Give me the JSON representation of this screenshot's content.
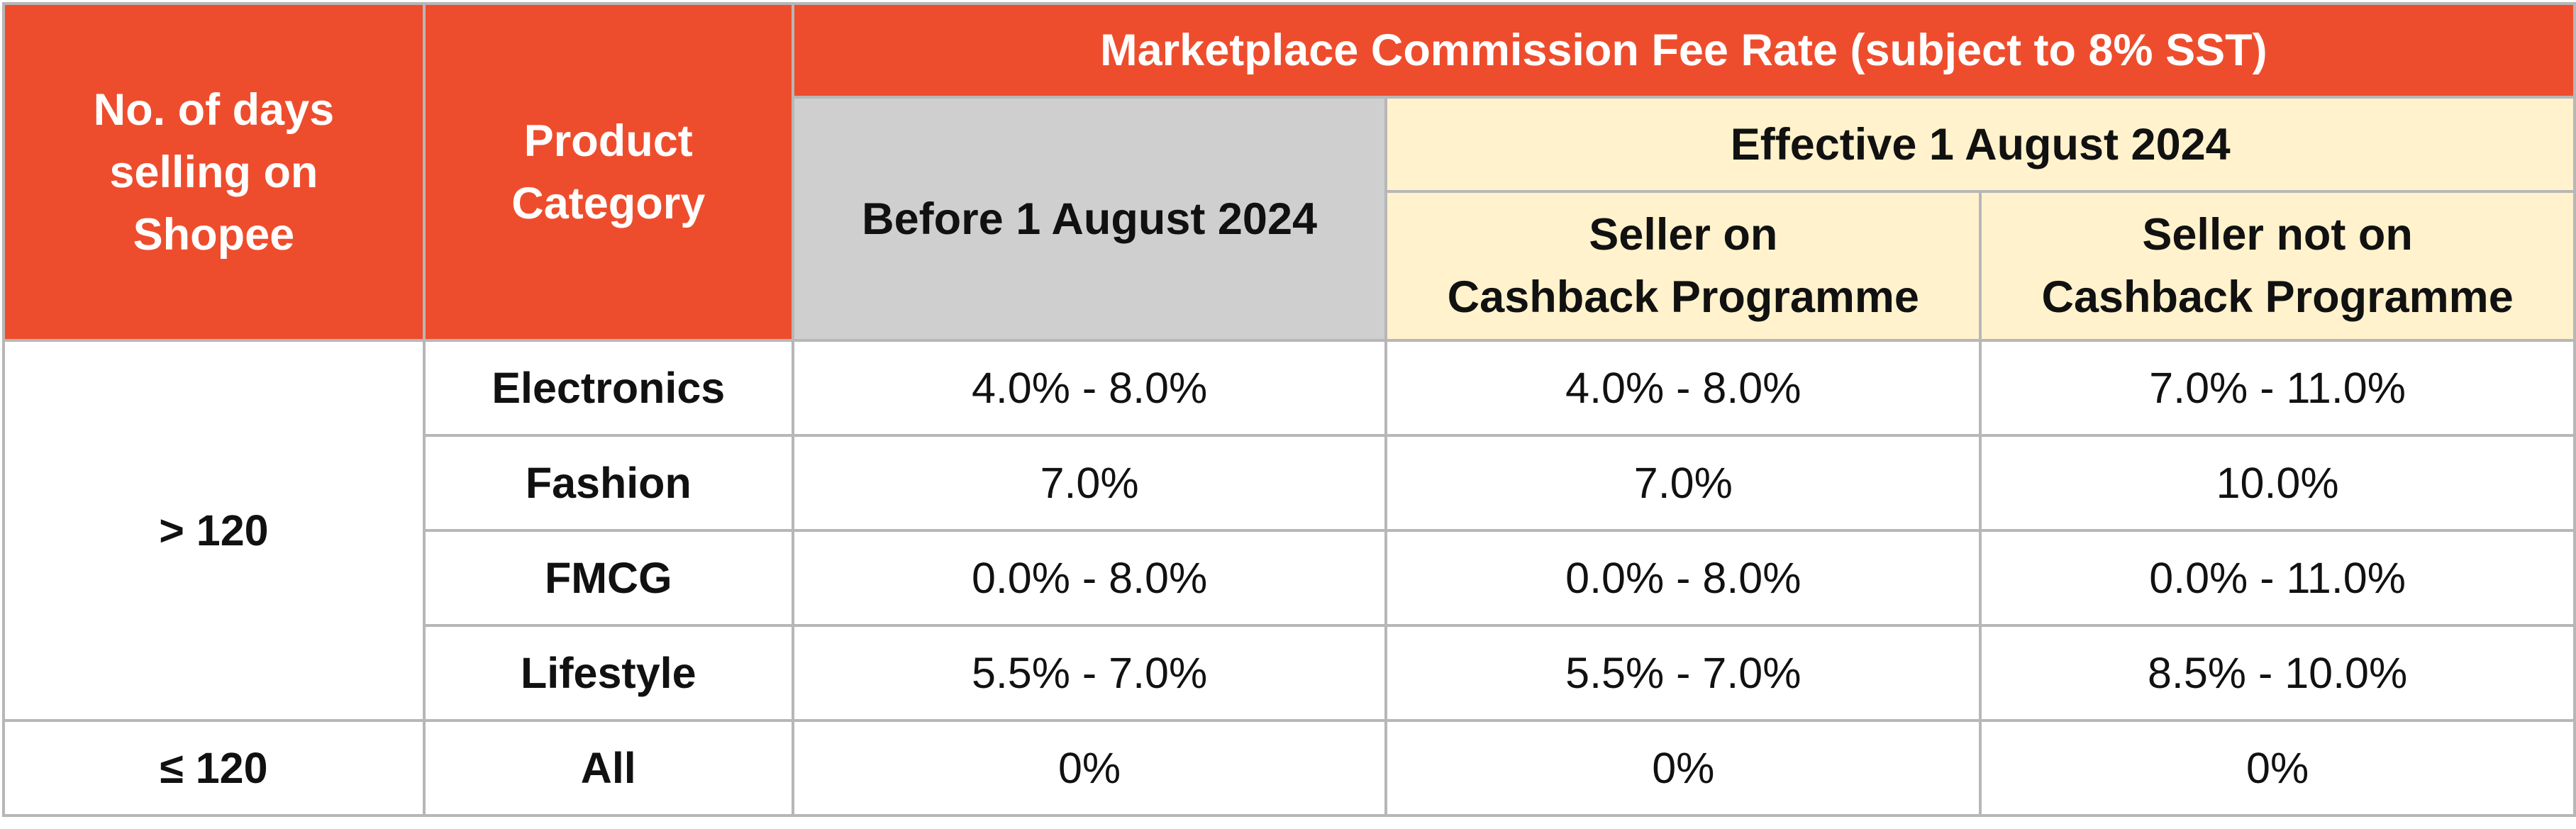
{
  "header": {
    "days_col": "No. of days\nselling on\nShopee",
    "category_col": "Product\nCategory",
    "commission_title": "Marketplace Commission Fee Rate (subject to 8% SST)",
    "before_label": "Before 1 August 2024",
    "effective_label": "Effective 1 August 2024",
    "on_cashback_label": "Seller on\nCashback Programme",
    "not_on_cashback_label": "Seller not on\nCashback Programme"
  },
  "groups": [
    {
      "days": "> 120",
      "rows": [
        {
          "category": "Electronics",
          "before": "4.0% - 8.0%",
          "on_cashback": "4.0% - 8.0%",
          "not_on_cashback": "7.0% - 11.0%"
        },
        {
          "category": "Fashion",
          "before": "7.0%",
          "on_cashback": "7.0%",
          "not_on_cashback": "10.0%"
        },
        {
          "category": "FMCG",
          "before": "0.0% - 8.0%",
          "on_cashback": "0.0% - 8.0%",
          "not_on_cashback": "0.0% - 11.0%"
        },
        {
          "category": "Lifestyle",
          "before": "5.5% - 7.0%",
          "on_cashback": "5.5% - 7.0%",
          "not_on_cashback": "8.5% - 10.0%"
        }
      ]
    },
    {
      "days": "≤ 120",
      "rows": [
        {
          "category": "All",
          "before": "0%",
          "on_cashback": "0%",
          "not_on_cashback": "0%"
        }
      ]
    }
  ],
  "colors": {
    "header_orange": "#ee4d2d",
    "header_grey": "#d0cfcf",
    "header_cream": "#fff2cc",
    "grid": "#b7b7b7"
  }
}
